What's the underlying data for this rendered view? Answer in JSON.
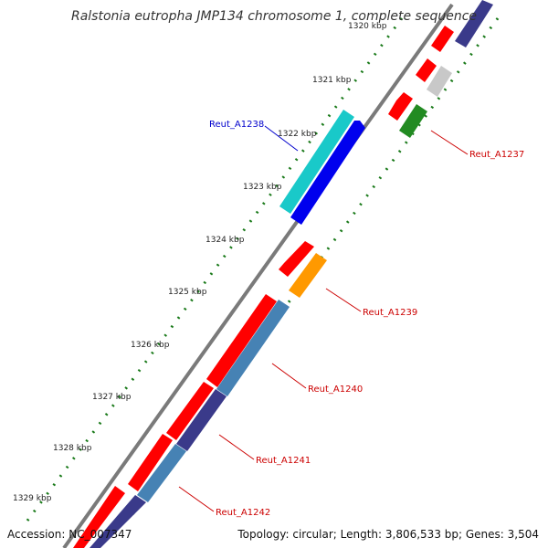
{
  "title": "Ralstonia eutropha JMP134 chromosome 1, complete sequence",
  "footer": {
    "accession": "Accession: NC_007347",
    "summary": "Topology: circular; Length: 3,806,533 bp; Genes: 3,504"
  },
  "ticks": [
    "1320 kbp",
    "1321 kbp",
    "1322 kbp",
    "1323 kbp",
    "1324 kbp",
    "1325 kbp",
    "1326 kbp",
    "1327 kbp",
    "1328 kbp",
    "1329 kbp"
  ],
  "genes": [
    {
      "label": "Reut_A1237",
      "color": "#cc0000"
    },
    {
      "label": "Reut_A1238",
      "color": "#0000cc"
    },
    {
      "label": "Reut_A1239",
      "color": "#cc0000"
    },
    {
      "label": "Reut_A1240",
      "color": "#cc0000"
    },
    {
      "label": "Reut_A1241",
      "color": "#cc0000"
    },
    {
      "label": "Reut_A1242",
      "color": "#cc0000"
    }
  ],
  "colors": {
    "backbone": "#8a8a8a",
    "tick_dots": "#1a7a1a",
    "red": "#ff0000",
    "cyan": "#19c9c9",
    "blue": "#0000ee",
    "orange": "#ff9900",
    "steelblue": "#4682b4",
    "navy": "#3a3a8a",
    "grey": "#c8c8c8",
    "green": "#228b22"
  }
}
